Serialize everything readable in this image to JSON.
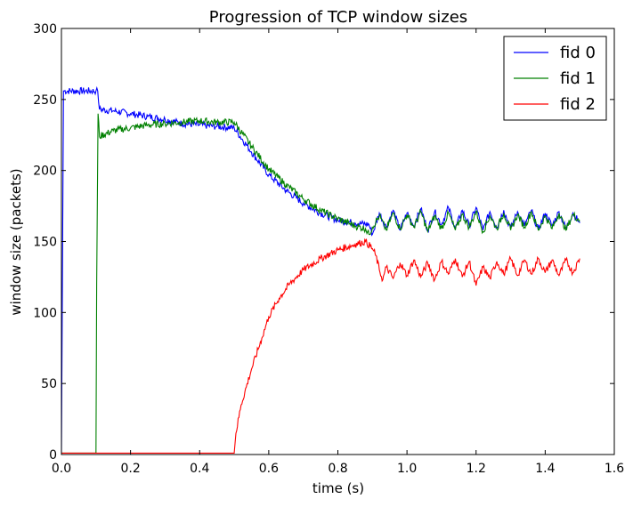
{
  "chart_data": {
    "type": "line",
    "title": "Progression of TCP window sizes",
    "xlabel": "time (s)",
    "ylabel": "window size (packets)",
    "xlim": [
      0.0,
      1.6
    ],
    "ylim": [
      0,
      300
    ],
    "xticks": [
      "0.0",
      "0.2",
      "0.4",
      "0.6",
      "0.8",
      "1.0",
      "1.2",
      "1.4",
      "1.6"
    ],
    "yticks": [
      "0",
      "50",
      "100",
      "150",
      "200",
      "250",
      "300"
    ],
    "grid": false,
    "legend_position": "top-right",
    "series": [
      {
        "name": "fid 0",
        "color": "#0000ff",
        "x": [
          0.0,
          0.003,
          0.006,
          0.1,
          0.105,
          0.11,
          0.15,
          0.2,
          0.25,
          0.3,
          0.35,
          0.4,
          0.45,
          0.5,
          0.55,
          0.6,
          0.65,
          0.7,
          0.75,
          0.8,
          0.85,
          0.89,
          0.9,
          0.92,
          0.94,
          0.96,
          0.98,
          1.0,
          1.02,
          1.04,
          1.06,
          1.08,
          1.1,
          1.12,
          1.14,
          1.16,
          1.18,
          1.2,
          1.22,
          1.24,
          1.26,
          1.28,
          1.3,
          1.32,
          1.34,
          1.36,
          1.38,
          1.4,
          1.42,
          1.44,
          1.46,
          1.48,
          1.5
        ],
        "y": [
          1,
          130,
          256,
          256,
          256,
          243,
          242,
          240,
          238,
          236,
          233,
          232,
          231,
          230,
          213,
          197,
          186,
          177,
          170,
          165,
          163,
          162,
          155,
          170,
          160,
          172,
          158,
          170,
          161,
          173,
          158,
          171,
          162,
          174,
          159,
          172,
          161,
          174,
          158,
          171,
          160,
          172,
          159,
          171,
          161,
          172,
          158,
          170,
          161,
          171,
          159,
          170,
          163
        ]
      },
      {
        "name": "fid 1",
        "color": "#008000",
        "x": [
          0.0,
          0.1,
          0.102,
          0.106,
          0.11,
          0.15,
          0.2,
          0.25,
          0.3,
          0.35,
          0.4,
          0.45,
          0.5,
          0.55,
          0.6,
          0.65,
          0.7,
          0.75,
          0.8,
          0.85,
          0.88,
          0.89,
          0.9,
          0.92,
          0.94,
          0.96,
          0.98,
          1.0,
          1.02,
          1.04,
          1.06,
          1.08,
          1.1,
          1.12,
          1.14,
          1.16,
          1.18,
          1.2,
          1.22,
          1.24,
          1.26,
          1.28,
          1.3,
          1.32,
          1.34,
          1.36,
          1.38,
          1.4,
          1.42,
          1.44,
          1.46,
          1.48,
          1.5
        ],
        "y": [
          1,
          1,
          120,
          240,
          224,
          228,
          230,
          232,
          233,
          234,
          235,
          234,
          234,
          217,
          201,
          190,
          180,
          172,
          166,
          161,
          159,
          155,
          160,
          168,
          158,
          170,
          159,
          169,
          160,
          171,
          157,
          168,
          159,
          170,
          158,
          169,
          160,
          171,
          157,
          168,
          159,
          170,
          158,
          169,
          160,
          171,
          158,
          168,
          159,
          170,
          158,
          169,
          165
        ]
      },
      {
        "name": "fid 2",
        "color": "#ff0000",
        "x": [
          0.0,
          0.1,
          0.2,
          0.3,
          0.4,
          0.5,
          0.505,
          0.52,
          0.55,
          0.58,
          0.6,
          0.63,
          0.66,
          0.7,
          0.75,
          0.8,
          0.85,
          0.88,
          0.9,
          0.91,
          0.92,
          0.93,
          0.94,
          0.96,
          0.98,
          1.0,
          1.02,
          1.04,
          1.06,
          1.08,
          1.1,
          1.12,
          1.14,
          1.16,
          1.18,
          1.2,
          1.22,
          1.24,
          1.26,
          1.28,
          1.3,
          1.32,
          1.34,
          1.36,
          1.38,
          1.4,
          1.42,
          1.44,
          1.46,
          1.48,
          1.5
        ],
        "y": [
          1,
          1,
          1,
          1,
          1,
          1,
          15,
          35,
          60,
          82,
          97,
          110,
          120,
          130,
          138,
          144,
          148,
          150,
          145,
          140,
          130,
          123,
          132,
          124,
          135,
          126,
          137,
          125,
          135,
          123,
          136,
          127,
          138,
          125,
          136,
          119,
          132,
          124,
          136,
          127,
          138,
          126,
          137,
          127,
          138,
          128,
          137,
          126,
          137,
          128,
          138
        ]
      }
    ]
  }
}
